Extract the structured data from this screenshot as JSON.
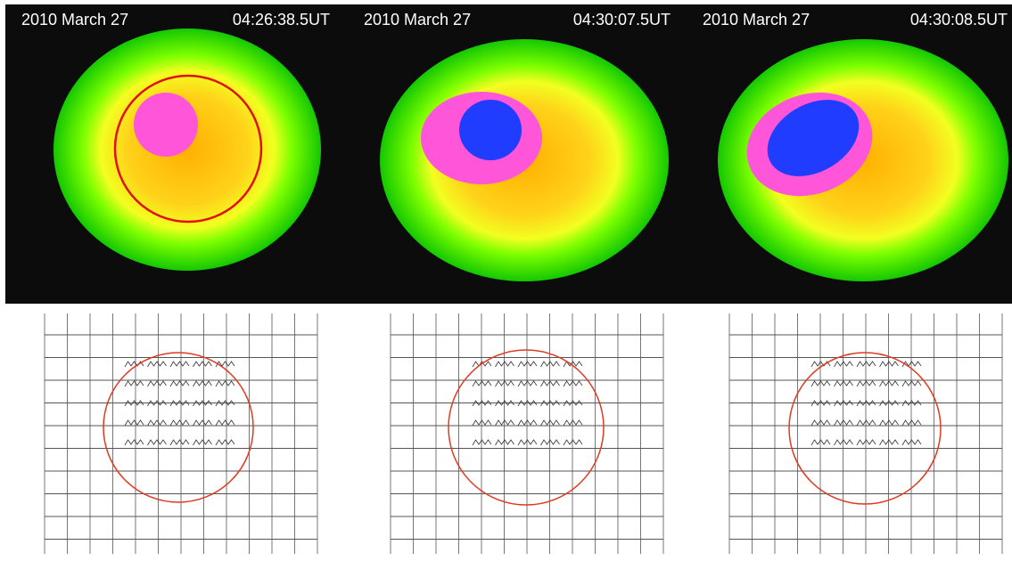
{
  "panels": [
    {
      "date": "2010 March 27",
      "time": "04:26:38.5UT"
    },
    {
      "date": "2010 March 27",
      "time": "04:30:07.5UT"
    },
    {
      "date": "2010 March 27",
      "time": "04:30:08.5UT"
    }
  ]
}
